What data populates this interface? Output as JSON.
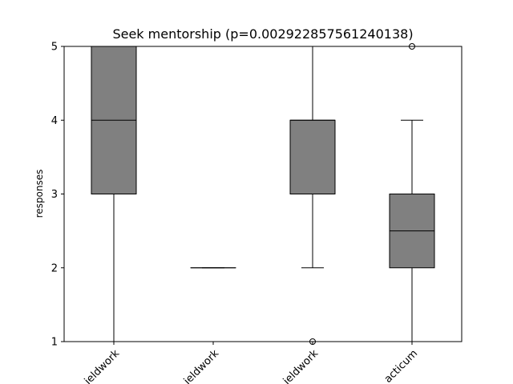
{
  "chart_data": {
    "type": "box",
    "title": "Seek mentorship (p=0.002922857561240138)",
    "xlabel": "",
    "ylabel": "responses",
    "ylim": [
      1,
      5
    ],
    "yticks": [
      1,
      2,
      3,
      4,
      5
    ],
    "categories": [
      "ieldwork",
      "ieldwork",
      "ieldwork",
      "acticum"
    ],
    "boxes": [
      {
        "whisker_low": 1,
        "q1": 3,
        "median": 4,
        "q3": 5,
        "whisker_high": 5,
        "outliers": []
      },
      {
        "whisker_low": 2,
        "q1": 2,
        "median": 2,
        "q3": 2,
        "whisker_high": 2,
        "outliers": []
      },
      {
        "whisker_low": 2,
        "q1": 3,
        "median": 4,
        "q3": 4,
        "whisker_high": 5,
        "outliers": [
          1
        ]
      },
      {
        "whisker_low": 1,
        "q1": 2,
        "median": 2.5,
        "q3": 3,
        "whisker_high": 4,
        "outliers": [
          5
        ]
      }
    ],
    "box_color": "#808080",
    "line_color": "#000000",
    "grid": false,
    "legend": "none"
  }
}
